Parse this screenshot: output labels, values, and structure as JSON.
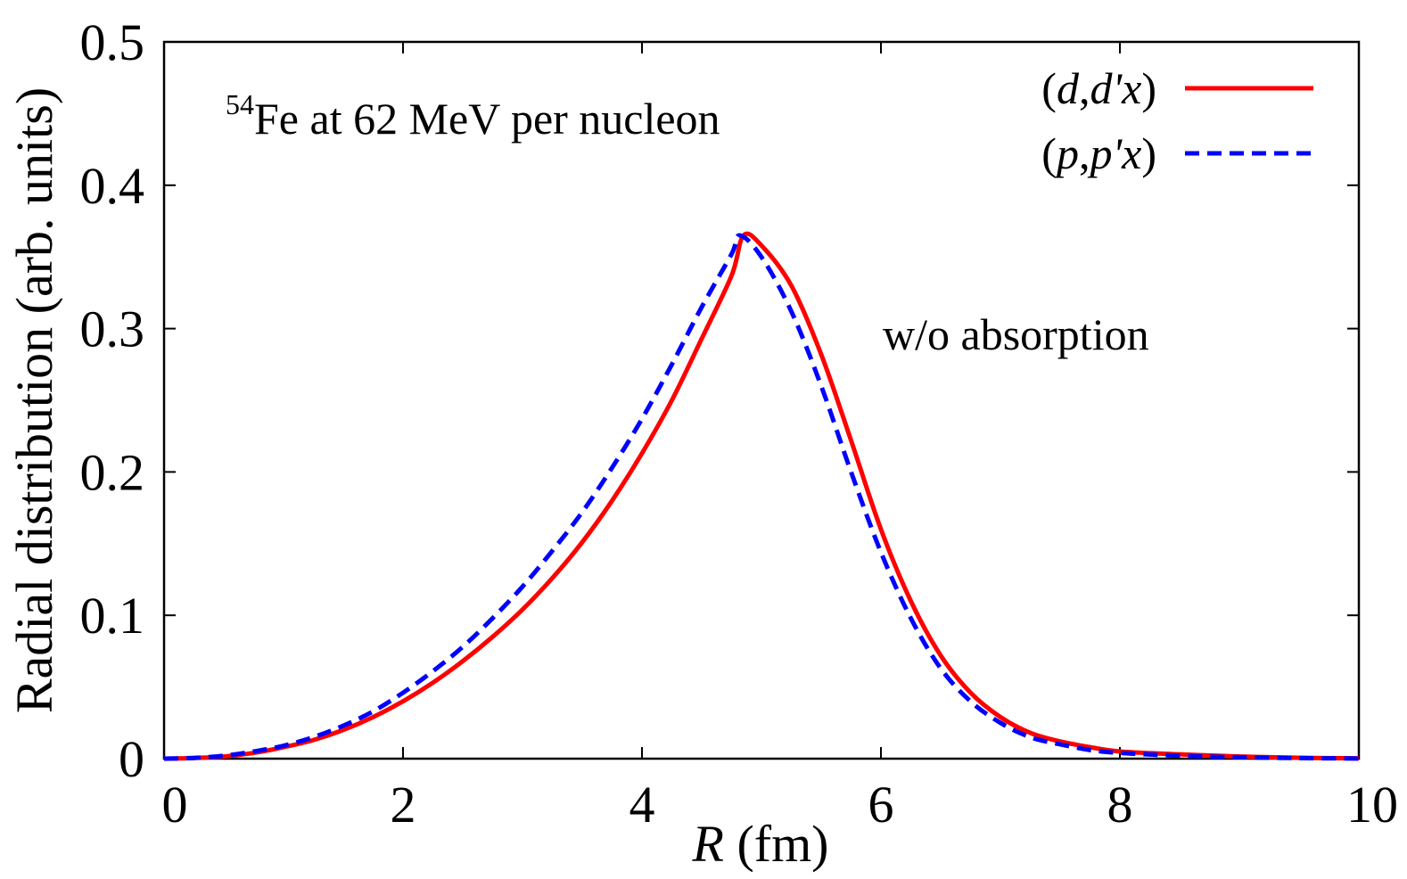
{
  "chart_data": {
    "type": "line",
    "xlabel_italic": "R",
    "xlabel_rest": " (fm)",
    "ylabel": "Radial distribution (arb. units)",
    "xlim": [
      0,
      10
    ],
    "ylim": [
      0,
      0.5
    ],
    "x_ticks": [
      "0",
      "2",
      "4",
      "6",
      "8",
      "10"
    ],
    "y_ticks": [
      "0",
      "0.1",
      "0.2",
      "0.3",
      "0.4",
      "0.5"
    ],
    "grid": false,
    "legend_position": "top-right",
    "annotations": {
      "reaction_sup": "54",
      "reaction_text": "Fe at 62 MeV per nucleon",
      "condition": "w/o absorption"
    },
    "series": [
      {
        "name": "(d,d'x)",
        "legend_parts": [
          {
            "t": "(",
            "i": false
          },
          {
            "t": "d",
            "i": true
          },
          {
            "t": ",",
            "i": false
          },
          {
            "t": "d'x",
            "i": true
          },
          {
            "t": ")",
            "i": false
          }
        ],
        "color": "#ff0000",
        "style": "solid",
        "x": [
          0,
          0.25,
          0.5,
          0.75,
          1.0,
          1.25,
          1.5,
          1.75,
          2.0,
          2.25,
          2.5,
          2.75,
          3.0,
          3.25,
          3.5,
          3.75,
          4.0,
          4.25,
          4.5,
          4.75,
          4.85,
          5.0,
          5.25,
          5.5,
          5.75,
          6.0,
          6.25,
          6.5,
          6.75,
          7.0,
          7.25,
          7.5,
          7.75,
          8.0,
          8.5,
          9.0,
          9.5,
          10.0
        ],
        "y": [
          0.0,
          0.0005,
          0.0015,
          0.004,
          0.008,
          0.013,
          0.02,
          0.029,
          0.04,
          0.053,
          0.068,
          0.085,
          0.104,
          0.126,
          0.151,
          0.18,
          0.213,
          0.25,
          0.293,
          0.337,
          0.365,
          0.358,
          0.33,
          0.282,
          0.222,
          0.16,
          0.11,
          0.072,
          0.046,
          0.029,
          0.018,
          0.012,
          0.008,
          0.005,
          0.003,
          0.0015,
          0.0006,
          0.0002
        ]
      },
      {
        "name": "(p,p'x)",
        "legend_parts": [
          {
            "t": "(",
            "i": false
          },
          {
            "t": "p",
            "i": true
          },
          {
            "t": ",",
            "i": false
          },
          {
            "t": "p'x",
            "i": true
          },
          {
            "t": ")",
            "i": false
          }
        ],
        "color": "#0000ff",
        "style": "dashed",
        "x": [
          0,
          0.25,
          0.5,
          0.75,
          1.0,
          1.25,
          1.5,
          1.75,
          2.0,
          2.25,
          2.5,
          2.75,
          3.0,
          3.25,
          3.5,
          3.75,
          4.0,
          4.25,
          4.5,
          4.75,
          4.82,
          5.0,
          5.25,
          5.5,
          5.75,
          6.0,
          6.25,
          6.5,
          6.75,
          7.0,
          7.25,
          7.5,
          7.75,
          8.0,
          8.5,
          9.0,
          9.5,
          10.0
        ],
        "y": [
          0.0,
          0.0005,
          0.002,
          0.005,
          0.009,
          0.015,
          0.023,
          0.033,
          0.046,
          0.061,
          0.078,
          0.098,
          0.12,
          0.145,
          0.172,
          0.203,
          0.237,
          0.275,
          0.315,
          0.352,
          0.365,
          0.35,
          0.312,
          0.26,
          0.2,
          0.144,
          0.098,
          0.063,
          0.04,
          0.025,
          0.015,
          0.01,
          0.006,
          0.004,
          0.002,
          0.001,
          0.0004,
          0.0001
        ]
      }
    ]
  }
}
